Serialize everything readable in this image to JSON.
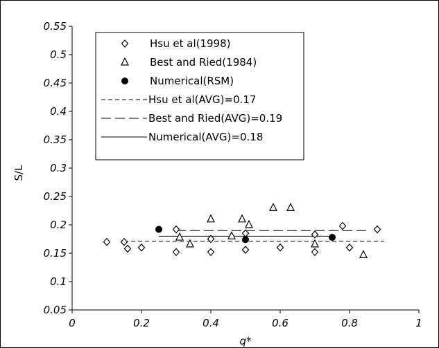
{
  "chart_data": {
    "type": "scatter",
    "title": "",
    "xlabel": "q*",
    "ylabel": "S/L",
    "xlim": [
      0,
      1
    ],
    "ylim": [
      0.05,
      0.55
    ],
    "x_ticks": [
      "0",
      "0.2",
      "0.4",
      "0.6",
      "0.8",
      "1"
    ],
    "y_ticks": [
      "0.05",
      "0.1",
      "0.15",
      "0.2",
      "0.25",
      "0.3",
      "0.35",
      "0.4",
      "0.45",
      "0.5",
      "0.55"
    ],
    "grid": false,
    "legend_position": "top-left",
    "series": [
      {
        "name": "Hsu et al(1998)",
        "marker": "diamond",
        "points": [
          [
            0.1,
            0.17
          ],
          [
            0.15,
            0.17
          ],
          [
            0.16,
            0.158
          ],
          [
            0.2,
            0.16
          ],
          [
            0.3,
            0.192
          ],
          [
            0.3,
            0.152
          ],
          [
            0.4,
            0.175
          ],
          [
            0.4,
            0.152
          ],
          [
            0.5,
            0.185
          ],
          [
            0.5,
            0.156
          ],
          [
            0.6,
            0.16
          ],
          [
            0.7,
            0.183
          ],
          [
            0.7,
            0.152
          ],
          [
            0.78,
            0.198
          ],
          [
            0.8,
            0.16
          ],
          [
            0.88,
            0.192
          ]
        ]
      },
      {
        "name": "Best and Ried(1984)",
        "marker": "triangle",
        "points": [
          [
            0.31,
            0.178
          ],
          [
            0.34,
            0.166
          ],
          [
            0.4,
            0.21
          ],
          [
            0.46,
            0.18
          ],
          [
            0.49,
            0.21
          ],
          [
            0.51,
            0.2
          ],
          [
            0.58,
            0.23
          ],
          [
            0.63,
            0.23
          ],
          [
            0.7,
            0.166
          ],
          [
            0.84,
            0.147
          ]
        ]
      },
      {
        "name": "Numerical(RSM)",
        "marker": "filled-circle",
        "points": [
          [
            0.25,
            0.192
          ],
          [
            0.5,
            0.174
          ],
          [
            0.75,
            0.178
          ]
        ]
      },
      {
        "name": "Hsu et al(AVG)=0.17",
        "style": "dashed",
        "points": [
          [
            0.15,
            0.171
          ],
          [
            0.9,
            0.171
          ]
        ]
      },
      {
        "name": "Best and Ried(AVG)=0.19",
        "style": "long-dashed",
        "points": [
          [
            0.3,
            0.19
          ],
          [
            0.85,
            0.19
          ]
        ]
      },
      {
        "name": "Numerical(AVG)=0.18",
        "style": "solid",
        "points": [
          [
            0.25,
            0.18
          ],
          [
            0.75,
            0.18
          ]
        ]
      }
    ]
  }
}
